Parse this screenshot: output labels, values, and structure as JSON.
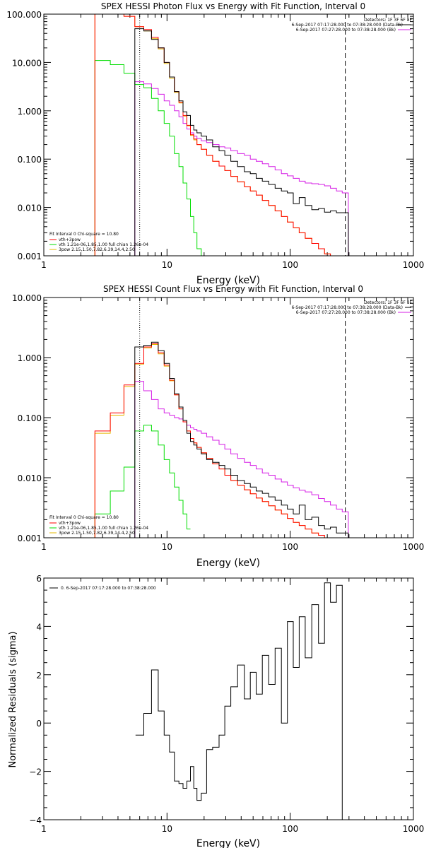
{
  "colors": {
    "data": "#000000",
    "total_fit": "#ff0000",
    "vth": "#00dd00",
    "bpow": "#e6b800",
    "background": "#d61ee6",
    "fit_interval": "#ff00ff"
  },
  "chart_data": [
    {
      "type": "line",
      "title": "SPEX HESSI Photon Flux vs Energy with Fit Function, Interval 0",
      "xlabel": "Energy (keV)",
      "ylabel": "",
      "xscale": "log",
      "yscale": "log",
      "xlim": [
        1,
        1000
      ],
      "ylim": [
        0.001,
        100
      ],
      "xticks": [
        {
          "v": 1,
          "label": "1"
        },
        {
          "v": 10,
          "label": "10"
        },
        {
          "v": 100,
          "label": "100"
        },
        {
          "v": 1000,
          "label": "1000"
        }
      ],
      "yticks": [
        {
          "v": 0.001,
          "label": "0.001"
        },
        {
          "v": 0.01,
          "label": "0.010"
        },
        {
          "v": 0.1,
          "label": "0.100"
        },
        {
          "v": 1,
          "label": "1.000"
        },
        {
          "v": 10,
          "label": "10.000"
        },
        {
          "v": 100,
          "label": "100.000"
        }
      ],
      "info_lines": [
        "Detectors: 1F 3F 6F 8F",
        "6-Sep-2017 07:17:28.000 to 07:38:28.000 (Data-Bk)",
        "6-Sep-2017 07:27:28.000 to 07:38:28.000 (Bk)"
      ],
      "legend_lines": [
        "Fit Interval 0   Chi-square = 10.80",
        "vth+3pow",
        "vth 1.21e-06,1.85,1.00   full chian 1.26e-04",
        "3pow 2.15,1.50,7.82,6.39,14.4,2.50"
      ],
      "vlines": [
        {
          "x": 6.0,
          "style": "dotted"
        },
        {
          "x": 280,
          "style": "dashed"
        }
      ],
      "x": [
        3,
        4,
        5,
        6,
        7,
        8,
        9,
        10,
        11,
        12,
        13,
        14,
        15,
        16,
        17,
        18,
        20,
        22,
        25,
        28,
        31,
        35,
        40,
        45,
        50,
        56,
        63,
        71,
        80,
        90,
        100,
        112,
        125,
        140,
        160,
        180,
        200,
        225,
        250,
        280
      ],
      "series": [
        {
          "name": "data",
          "role": "data",
          "values": [
            null,
            null,
            null,
            50,
            45,
            30,
            20,
            10,
            5,
            2.5,
            1.6,
            0.95,
            0.8,
            0.5,
            0.4,
            0.35,
            0.3,
            0.25,
            0.18,
            0.15,
            0.12,
            0.09,
            0.07,
            0.055,
            0.05,
            0.04,
            0.035,
            0.03,
            0.025,
            0.022,
            0.02,
            0.012,
            0.016,
            0.011,
            0.009,
            0.0095,
            0.008,
            0.0085,
            0.0078,
            0.0078
          ]
        },
        {
          "name": "vth+3pow",
          "role": "total_fit",
          "values": [
            1000,
            120,
            90,
            55,
            48,
            33,
            20,
            10,
            5,
            2.5,
            1.5,
            0.8,
            0.5,
            0.32,
            0.26,
            0.2,
            0.16,
            0.12,
            0.09,
            0.072,
            0.058,
            0.044,
            0.034,
            0.027,
            0.022,
            0.018,
            0.014,
            0.011,
            0.0085,
            0.0065,
            0.005,
            0.0038,
            0.003,
            0.0023,
            0.0018,
            0.0014,
            0.0011,
            0.00085,
            0.0007,
            0.0006
          ]
        },
        {
          "name": "vth",
          "role": "vth",
          "values": [
            11,
            9,
            6,
            3.5,
            3.0,
            1.8,
            1.0,
            0.55,
            0.3,
            0.13,
            0.07,
            0.032,
            0.015,
            0.0065,
            0.003,
            0.0014,
            0.0006,
            null,
            null,
            null,
            null,
            null,
            null,
            null,
            null,
            null,
            null,
            null,
            null,
            null,
            null,
            null,
            null,
            null,
            null,
            null,
            null,
            null,
            null,
            null
          ]
        },
        {
          "name": "3pow",
          "role": "bpow",
          "values": [
            1000,
            120,
            90,
            55,
            45,
            31,
            19,
            9.5,
            4.7,
            2.4,
            1.45,
            0.78,
            0.49,
            0.31,
            0.25,
            0.2,
            0.16,
            0.12,
            0.09,
            0.072,
            0.058,
            0.044,
            0.034,
            0.027,
            0.022,
            0.018,
            0.014,
            0.011,
            0.0085,
            0.0065,
            0.005,
            0.0038,
            0.003,
            0.0023,
            0.0018,
            0.0014,
            0.0011,
            0.00085,
            0.0007,
            0.0006
          ]
        },
        {
          "name": "background",
          "role": "background",
          "values": [
            null,
            null,
            null,
            4,
            3.6,
            2.9,
            2.2,
            1.6,
            1.3,
            1.0,
            0.75,
            0.55,
            0.42,
            0.35,
            0.3,
            0.27,
            0.24,
            0.22,
            0.2,
            0.18,
            0.17,
            0.15,
            0.13,
            0.12,
            0.1,
            0.09,
            0.08,
            0.07,
            0.06,
            0.05,
            0.045,
            0.04,
            0.035,
            0.032,
            0.031,
            0.03,
            0.028,
            0.025,
            0.022,
            0.02
          ]
        }
      ]
    },
    {
      "type": "line",
      "title": "SPEX HESSI Count Flux vs Energy with Fit Function, Interval 0",
      "xlabel": "Energy (keV)",
      "ylabel": "",
      "xscale": "log",
      "yscale": "log",
      "xlim": [
        1,
        1000
      ],
      "ylim": [
        0.001,
        10
      ],
      "xticks": [
        {
          "v": 1,
          "label": "1"
        },
        {
          "v": 10,
          "label": "10"
        },
        {
          "v": 100,
          "label": "100"
        },
        {
          "v": 1000,
          "label": "1000"
        }
      ],
      "yticks": [
        {
          "v": 0.001,
          "label": "0.001"
        },
        {
          "v": 0.01,
          "label": "0.010"
        },
        {
          "v": 0.1,
          "label": "0.100"
        },
        {
          "v": 1,
          "label": "1.000"
        },
        {
          "v": 10,
          "label": "10.000"
        }
      ],
      "info_lines": [
        "Detectors: 1F 3F 6F 8F",
        "6-Sep-2017 07:17:28.000 to 07:38:28.000 (Data-Bk)",
        "6-Sep-2017 07:27:28.000 to 07:38:28.000 (Bk)"
      ],
      "legend_lines": [
        "Fit Interval 0   Chi-square = 10.80",
        "vth+3pow",
        "vth 1.21e-06,1.85,1.00   full chian 1.26e-04",
        "3pow 2.15,1.50,7.82,6.39,14.4,2.50"
      ],
      "vlines": [
        {
          "x": 6.0,
          "style": "dotted"
        },
        {
          "x": 280,
          "style": "dashed"
        }
      ],
      "x": [
        3,
        4,
        5,
        6,
        7,
        8,
        9,
        10,
        11,
        12,
        13,
        14,
        15,
        16,
        17,
        18,
        20,
        22,
        25,
        28,
        31,
        35,
        40,
        45,
        50,
        56,
        63,
        71,
        80,
        90,
        100,
        112,
        125,
        140,
        160,
        180,
        200,
        225,
        250,
        280
      ],
      "series": [
        {
          "name": "data",
          "role": "data",
          "values": [
            null,
            null,
            null,
            1.5,
            1.6,
            1.8,
            1.3,
            0.8,
            0.45,
            0.25,
            0.15,
            0.09,
            0.055,
            0.04,
            0.035,
            0.03,
            0.025,
            0.02,
            0.018,
            0.016,
            0.014,
            0.011,
            0.009,
            0.008,
            0.007,
            0.006,
            0.0055,
            0.0048,
            0.0042,
            0.0035,
            0.003,
            0.0025,
            0.0035,
            0.002,
            0.0022,
            0.0016,
            0.0014,
            0.0015,
            0.0012,
            0.0012
          ]
        },
        {
          "name": "vth+3pow",
          "role": "total_fit",
          "values": [
            0.06,
            0.12,
            0.35,
            0.8,
            1.5,
            1.7,
            1.2,
            0.75,
            0.42,
            0.24,
            0.14,
            0.085,
            0.06,
            0.045,
            0.038,
            0.032,
            0.026,
            0.021,
            0.017,
            0.014,
            0.011,
            0.009,
            0.0075,
            0.0063,
            0.0054,
            0.0046,
            0.004,
            0.0034,
            0.0029,
            0.0025,
            0.0021,
            0.0018,
            0.0016,
            0.0014,
            0.0012,
            0.0011,
            0.001,
            0.0009,
            0.0008,
            0.0007
          ]
        },
        {
          "name": "vth",
          "role": "vth",
          "values": [
            0.0025,
            0.006,
            0.015,
            0.06,
            0.075,
            0.06,
            0.035,
            0.02,
            0.012,
            0.007,
            0.0042,
            0.0025,
            0.0014,
            null,
            null,
            null,
            null,
            null,
            null,
            null,
            null,
            null,
            null,
            null,
            null,
            null,
            null,
            null,
            null,
            null,
            null,
            null,
            null,
            null,
            null,
            null,
            null,
            null,
            null,
            null
          ]
        },
        {
          "name": "3pow",
          "role": "bpow",
          "values": [
            0.055,
            0.11,
            0.33,
            0.78,
            1.45,
            1.65,
            1.15,
            0.72,
            0.41,
            0.24,
            0.14,
            0.085,
            0.06,
            0.045,
            0.038,
            0.032,
            0.026,
            0.021,
            0.017,
            0.014,
            0.011,
            0.009,
            0.0075,
            0.0063,
            0.0054,
            0.0046,
            0.004,
            0.0034,
            0.0029,
            0.0025,
            0.0021,
            0.0018,
            0.0016,
            0.0014,
            0.0012,
            0.0011,
            0.001,
            0.0009,
            0.0008,
            0.0007
          ]
        },
        {
          "name": "background",
          "role": "background",
          "values": [
            null,
            null,
            null,
            0.4,
            0.28,
            0.2,
            0.14,
            0.12,
            0.11,
            0.1,
            0.095,
            0.085,
            0.075,
            0.068,
            0.064,
            0.06,
            0.055,
            0.048,
            0.042,
            0.036,
            0.03,
            0.025,
            0.021,
            0.018,
            0.016,
            0.014,
            0.012,
            0.011,
            0.0095,
            0.0085,
            0.0075,
            0.0068,
            0.0062,
            0.0058,
            0.0052,
            0.0045,
            0.004,
            0.0035,
            0.003,
            0.0027
          ]
        }
      ]
    },
    {
      "type": "line",
      "title": "",
      "xlabel": "Energy (keV)",
      "ylabel": "Normalized Residuals (sigma)",
      "xscale": "log",
      "yscale": "linear",
      "xlim": [
        1,
        1000
      ],
      "ylim": [
        -4,
        6
      ],
      "xticks": [
        {
          "v": 1,
          "label": "1"
        },
        {
          "v": 10,
          "label": "10"
        },
        {
          "v": 100,
          "label": "100"
        },
        {
          "v": 1000,
          "label": "1000"
        }
      ],
      "yticks": [
        {
          "v": -4,
          "label": "−4"
        },
        {
          "v": -2,
          "label": "−2"
        },
        {
          "v": 0,
          "label": "0"
        },
        {
          "v": 2,
          "label": "2"
        },
        {
          "v": 4,
          "label": "4"
        },
        {
          "v": 6,
          "label": "6"
        }
      ],
      "legend_lines": [
        "0. 6-Sep-2017 07:17:28.000 to 07:38:28.000"
      ],
      "x": [
        6,
        7,
        8,
        9,
        10,
        11,
        12,
        13,
        14,
        15,
        16,
        17,
        18,
        20,
        22,
        25,
        28,
        31,
        35,
        40,
        45,
        50,
        56,
        63,
        71,
        80,
        90,
        100,
        112,
        125,
        140,
        160,
        180,
        200,
        225,
        250,
        280
      ],
      "series": [
        {
          "name": "residuals",
          "role": "data",
          "values": [
            -0.5,
            0.4,
            2.2,
            0.5,
            -0.5,
            -1.2,
            -2.4,
            -2.5,
            -2.7,
            -2.4,
            -1.8,
            -2.7,
            -3.2,
            -2.9,
            -1.1,
            -1.0,
            -0.5,
            0.7,
            1.5,
            2.4,
            1.0,
            2.1,
            1.2,
            2.8,
            1.6,
            3.1,
            0.0,
            4.2,
            2.3,
            4.4,
            2.7,
            4.9,
            3.3,
            5.8,
            5.0,
            5.7,
            -4
          ]
        }
      ]
    }
  ]
}
